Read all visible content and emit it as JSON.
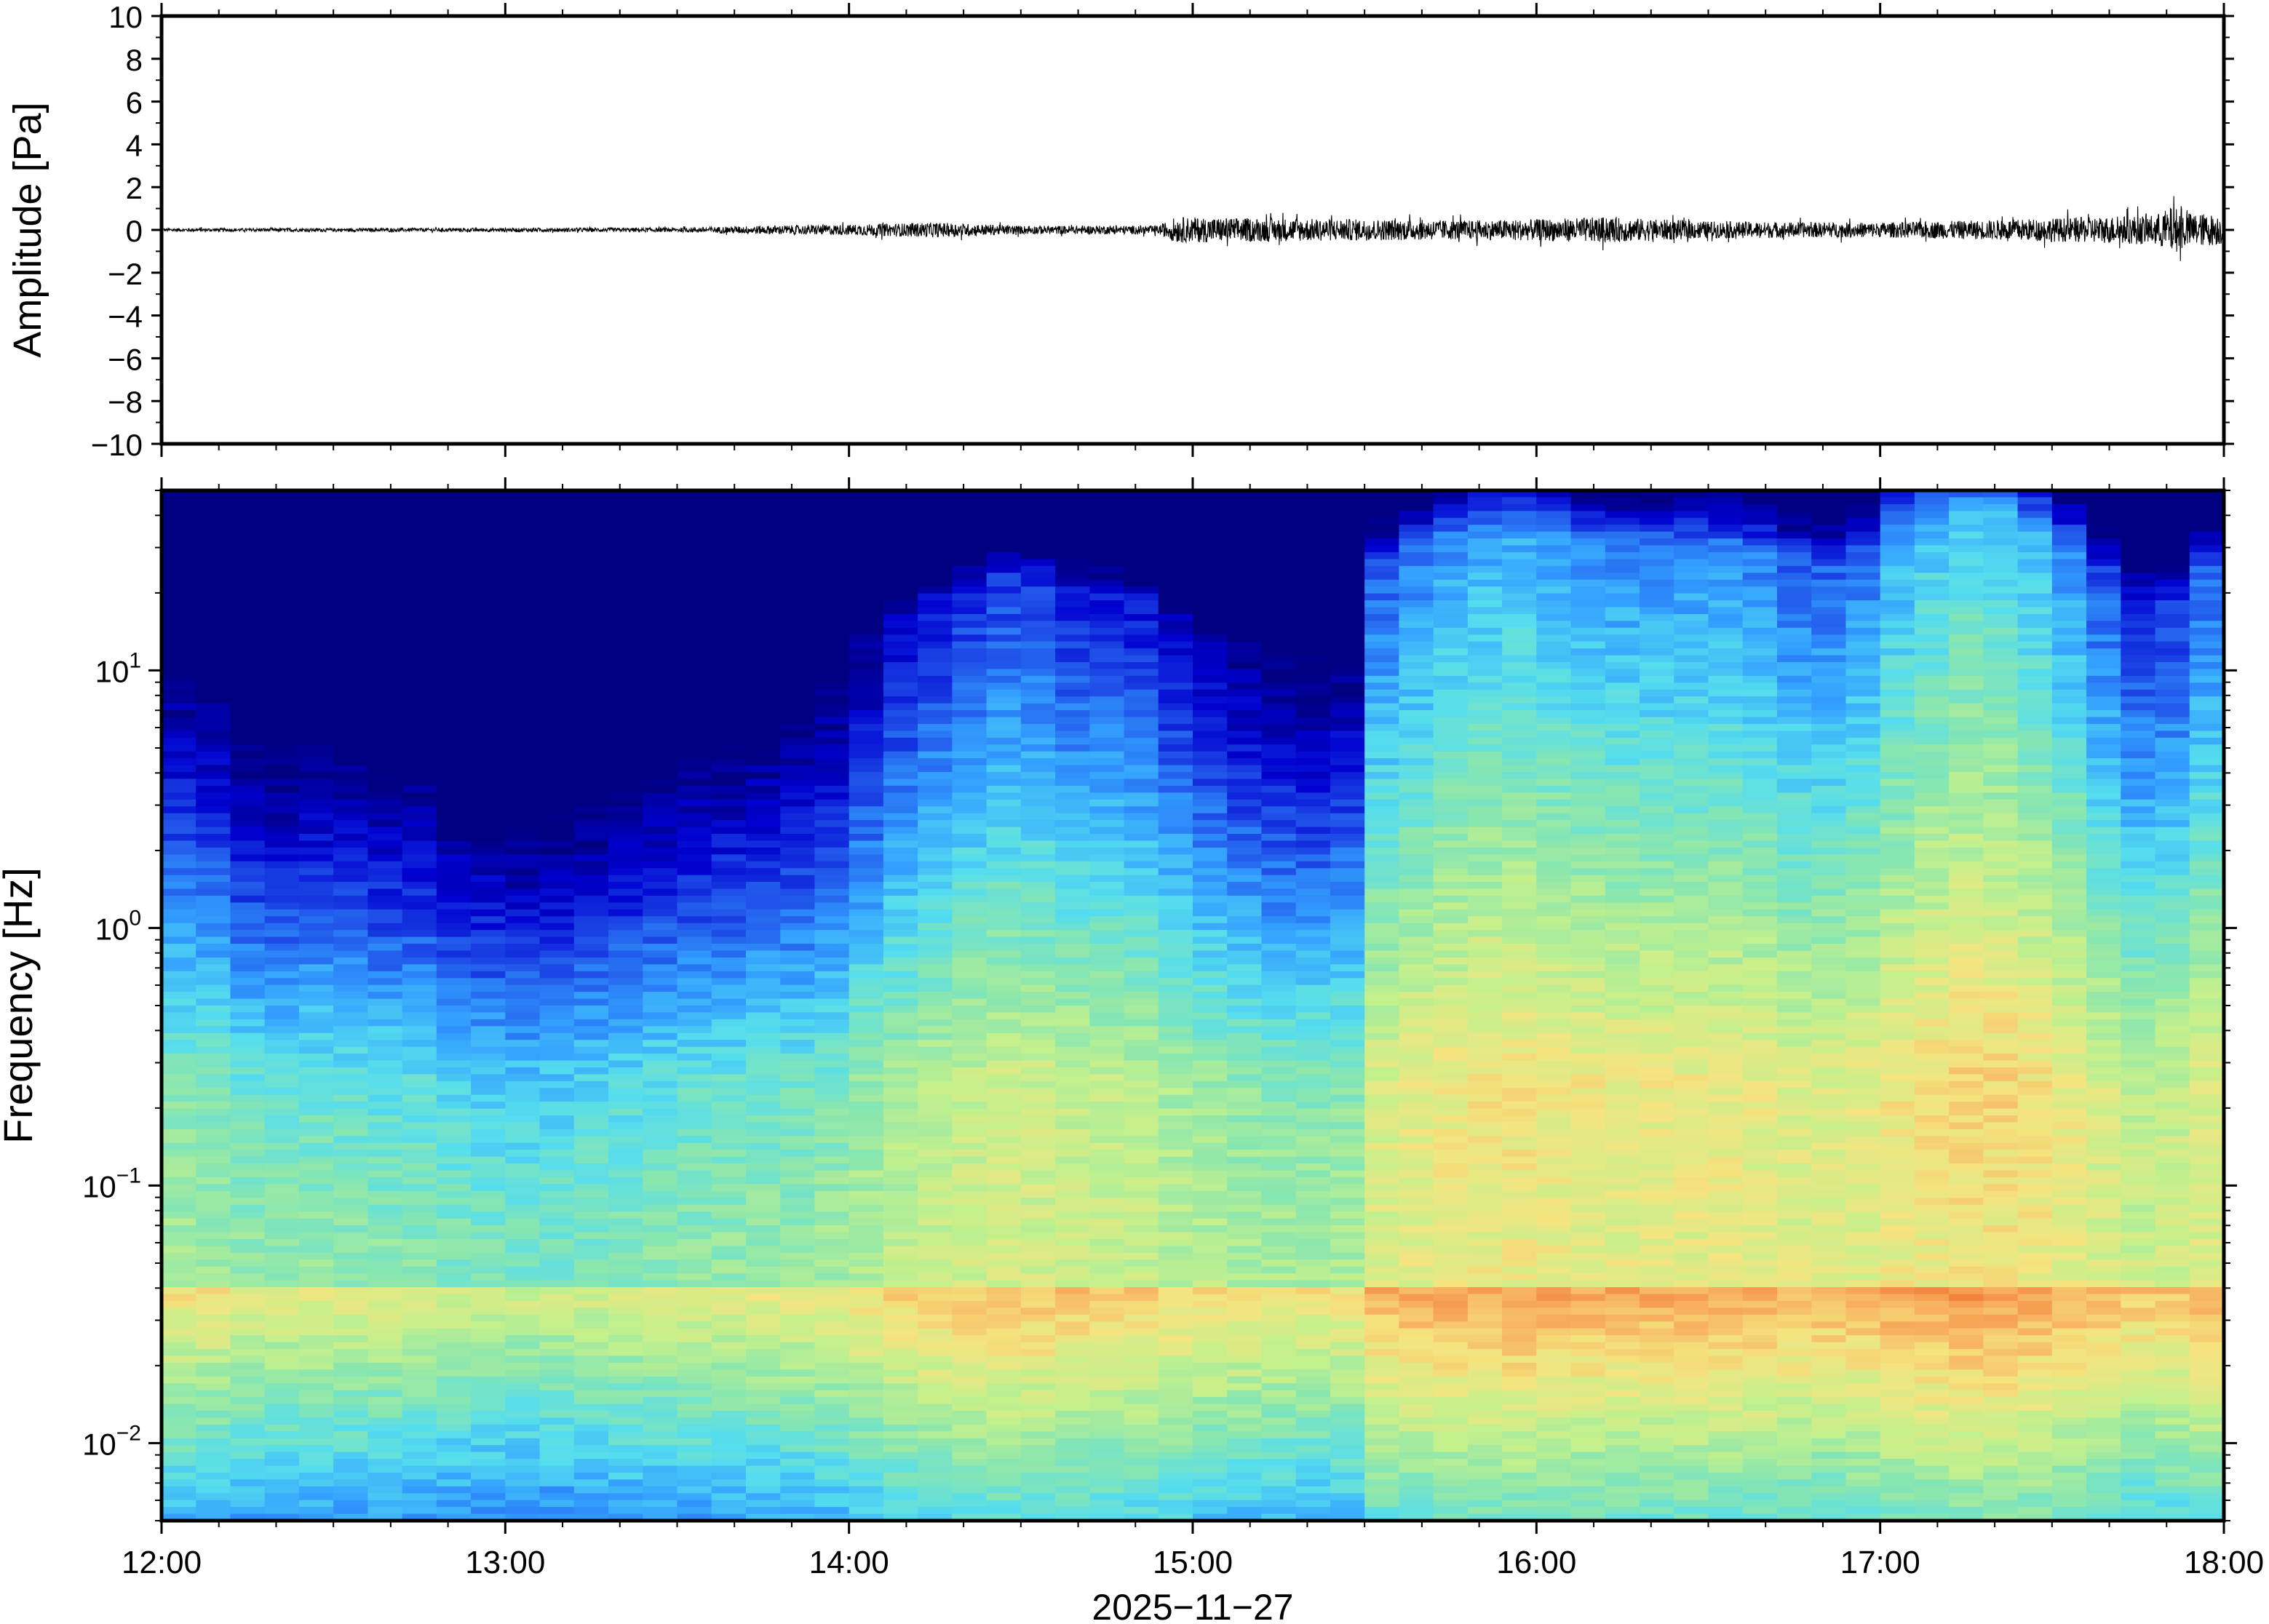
{
  "chart_data": [
    {
      "type": "line",
      "panel": "waveform",
      "ylabel": "Amplitude [Pa]",
      "ylim": [
        -10,
        10
      ],
      "yticks": [
        -10,
        -8,
        -6,
        -4,
        -2,
        0,
        2,
        4,
        6,
        8,
        10
      ],
      "ytick_labels": [
        "−10",
        "−8",
        "−6",
        "−4",
        "−2",
        "0",
        "2",
        "4",
        "6",
        "8",
        "10"
      ],
      "xlim": [
        "12:00",
        "18:00"
      ],
      "envelope": {
        "x_hours": [
          12.0,
          12.5,
          13.0,
          13.5,
          13.75,
          14.0,
          14.25,
          14.5,
          14.9,
          14.95,
          15.2,
          15.5,
          15.8,
          16.0,
          16.2,
          16.5,
          16.8,
          17.0,
          17.3,
          17.6,
          17.8,
          17.85,
          17.9,
          18.0
        ],
        "amplitude": [
          0.08,
          0.08,
          0.09,
          0.1,
          0.2,
          0.25,
          0.35,
          0.2,
          0.2,
          0.6,
          0.55,
          0.5,
          0.45,
          0.5,
          0.6,
          0.4,
          0.35,
          0.35,
          0.45,
          0.6,
          0.7,
          1.1,
          0.8,
          0.7
        ]
      }
    },
    {
      "type": "heatmap",
      "panel": "spectrogram",
      "ylabel": "Frequency [Hz]",
      "yscale": "log",
      "ylim": [
        0.005,
        50
      ],
      "yticks": [
        0.01,
        0.1,
        1,
        10
      ],
      "ytick_labels": [
        {
          "base": "10",
          "exp": "−2"
        },
        {
          "base": "10",
          "exp": "−1"
        },
        {
          "base": "10",
          "exp": "0"
        },
        {
          "base": "10",
          "exp": "1"
        }
      ],
      "xlim": [
        "12:00",
        "18:00"
      ],
      "columns_per_hour": 10,
      "colormap": [
        "#000080",
        "#0000d0",
        "#1f4fe8",
        "#33a0ff",
        "#55ddee",
        "#88e6b0",
        "#c4f08c",
        "#f4e480",
        "#f8b060",
        "#f07030"
      ],
      "column_loudness": [
        0.32,
        0.3,
        0.22,
        0.2,
        0.22,
        0.2,
        0.18,
        0.17,
        0.12,
        0.1,
        0.08,
        0.09,
        0.12,
        0.15,
        0.18,
        0.2,
        0.22,
        0.24,
        0.25,
        0.3,
        0.38,
        0.45,
        0.5,
        0.54,
        0.57,
        0.56,
        0.53,
        0.52,
        0.5,
        0.44,
        0.4,
        0.36,
        0.33,
        0.32,
        0.34,
        0.62,
        0.66,
        0.7,
        0.72,
        0.73,
        0.71,
        0.69,
        0.68,
        0.68,
        0.68,
        0.68,
        0.66,
        0.63,
        0.62,
        0.65,
        0.72,
        0.76,
        0.79,
        0.78,
        0.74,
        0.68,
        0.6,
        0.52,
        0.54,
        0.62
      ]
    }
  ],
  "xaxis": {
    "ticks": [
      "12:00",
      "13:00",
      "14:00",
      "15:00",
      "16:00",
      "17:00",
      "18:00"
    ],
    "label": "2025−11−27"
  }
}
